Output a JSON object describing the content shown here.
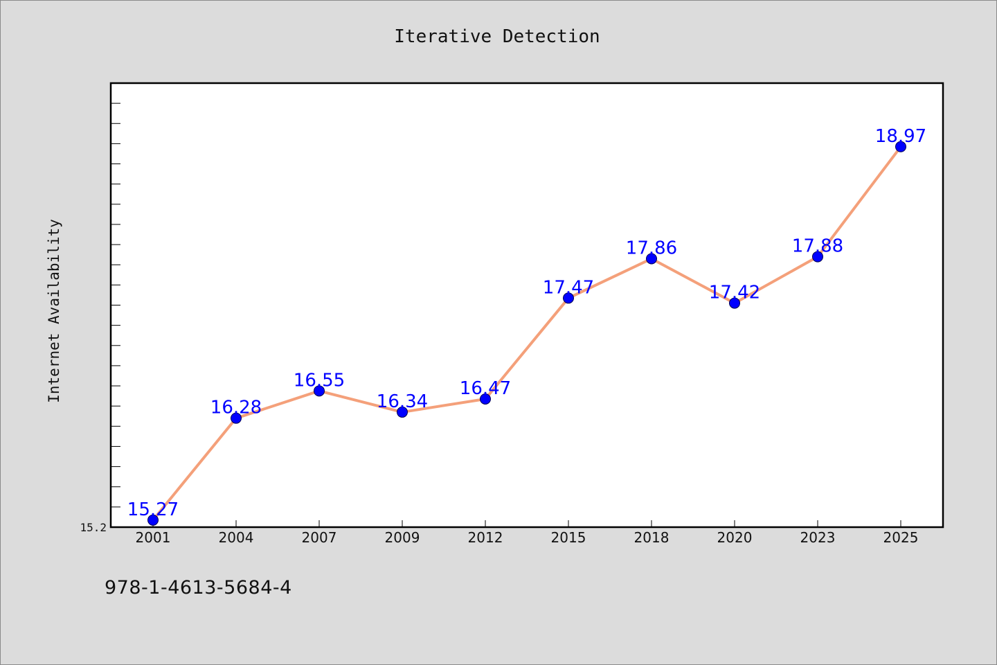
{
  "chart_data": {
    "type": "line",
    "title": "Iterative Detection",
    "xlabel": "",
    "ylabel": "Internet Availability",
    "categories": [
      "2001",
      "2004",
      "2007",
      "2009",
      "2012",
      "2015",
      "2018",
      "2020",
      "2023",
      "2025"
    ],
    "series": [
      {
        "values": [
          15.27,
          16.28,
          16.55,
          16.34,
          16.47,
          17.47,
          17.86,
          17.42,
          17.88,
          18.97
        ],
        "labels": [
          "15.27",
          "16.28",
          "16.55",
          "16.34",
          "16.47",
          "17.47",
          "17.86",
          "17.42",
          "17.88",
          "18.97"
        ]
      }
    ],
    "ylim": [
      15.2,
      19.6
    ],
    "yticks_labeled": [
      "15.2"
    ],
    "grid": false,
    "legend": "none",
    "line_color": "#f4a07a",
    "marker_color": "#0000ff",
    "label_color": "#0000ff"
  },
  "footer": {
    "isbn": "978-1-4613-5684-4"
  }
}
